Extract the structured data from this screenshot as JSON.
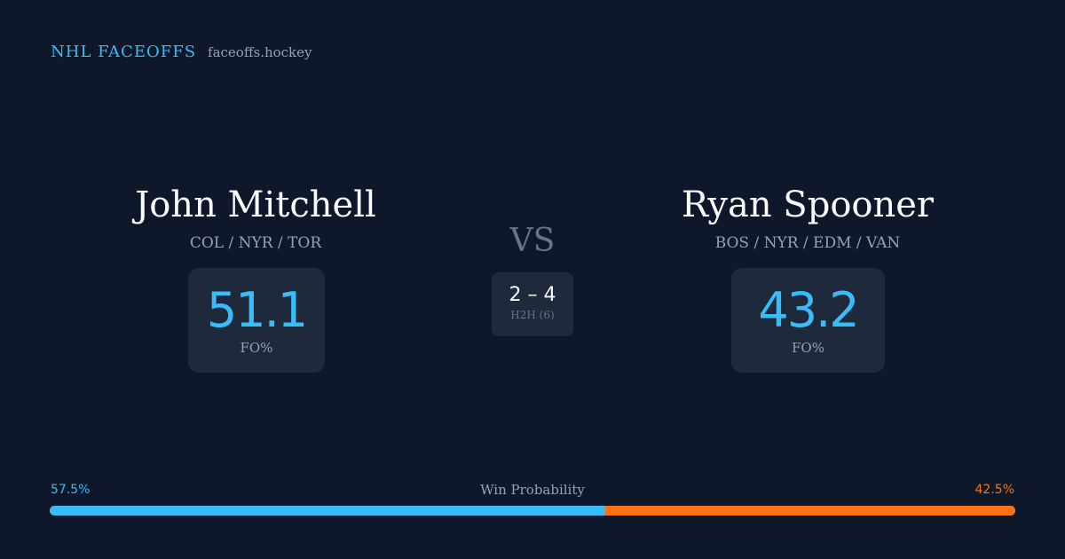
{
  "brand": {
    "name": "NHL FACEOFFS",
    "site": "faceoffs.hockey"
  },
  "matchup": {
    "vs_label": "VS",
    "left_player": {
      "name": "John Mitchell",
      "teams": "COL / NYR / TOR",
      "fo_pct": "51.1",
      "fo_label": "FO%"
    },
    "right_player": {
      "name": "Ryan Spooner",
      "teams": "BOS / NYR / EDM / VAN",
      "fo_pct": "43.2",
      "fo_label": "FO%"
    },
    "h2h": {
      "score": "2 – 4",
      "label": "H2H (6)"
    }
  },
  "win_probability": {
    "label": "Win Probability",
    "left_text": "57.5%",
    "right_text": "42.5%",
    "left_value": 57.5,
    "right_value": 42.5
  },
  "colors": {
    "background": "#0f172a",
    "card": "#1e293b",
    "accent_blue": "#38bdf8",
    "accent_orange": "#f97316",
    "muted_text": "#94a3b8"
  }
}
